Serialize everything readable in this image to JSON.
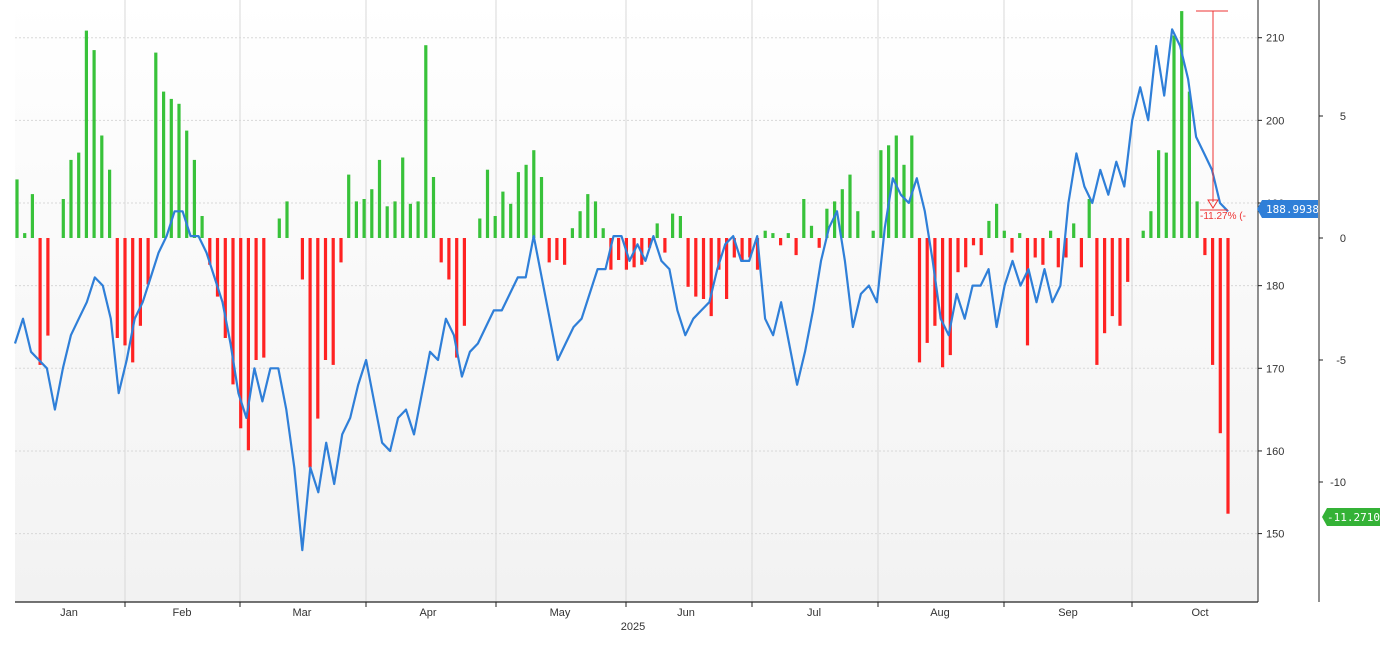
{
  "colors": {
    "price_line": "#2f7fd8",
    "bar_up": "#38c23a",
    "bar_down": "#ff2222",
    "grid": "#d8d8d8",
    "price_badge": "#2f7fd8",
    "pct_badge": "#34b236",
    "drawdown": "#ee3333"
  },
  "chart_data": {
    "type": "bar+line",
    "x_year_label": "2025",
    "month_labels": [
      "Jan",
      "Feb",
      "Mar",
      "Apr",
      "May",
      "Jun",
      "Jul",
      "Aug",
      "Sep",
      "Oct"
    ],
    "y_left": {
      "ticks": [
        "150",
        "160",
        "170",
        "180",
        "190",
        "200",
        "210"
      ],
      "range": [
        143,
        213
      ]
    },
    "y_right": {
      "ticks": [
        "5",
        "0",
        "-5",
        "-10"
      ],
      "range": [
        -15,
        9.6
      ]
    },
    "price_label": "188.9938",
    "pct_label": "-11.2710",
    "drawdown_label": "-11.27% (-",
    "grid": true,
    "series": [
      {
        "kind": "line",
        "axis": "left",
        "points": [
          [
            0,
            173
          ],
          [
            1,
            176
          ],
          [
            2,
            172
          ],
          [
            3,
            171
          ],
          [
            4,
            170
          ],
          [
            5,
            165
          ],
          [
            6,
            170
          ],
          [
            7,
            174
          ],
          [
            8,
            176
          ],
          [
            9,
            178
          ],
          [
            10,
            181
          ],
          [
            11,
            180
          ],
          [
            12,
            176
          ],
          [
            13,
            167
          ],
          [
            14,
            171
          ],
          [
            15,
            176
          ],
          [
            16,
            178
          ],
          [
            17,
            181
          ],
          [
            18,
            184
          ],
          [
            19,
            186
          ],
          [
            20,
            189
          ],
          [
            21,
            189
          ],
          [
            22,
            186
          ],
          [
            23,
            186
          ],
          [
            24,
            184
          ],
          [
            25,
            181
          ],
          [
            26,
            178
          ],
          [
            27,
            173
          ],
          [
            28,
            167
          ],
          [
            29,
            164
          ],
          [
            30,
            170
          ],
          [
            31,
            166
          ],
          [
            32,
            170
          ],
          [
            33,
            170
          ],
          [
            34,
            165
          ],
          [
            35,
            158
          ],
          [
            36,
            148
          ],
          [
            37,
            158
          ],
          [
            38,
            155
          ],
          [
            39,
            161
          ],
          [
            40,
            156
          ],
          [
            41,
            162
          ],
          [
            42,
            164
          ],
          [
            43,
            168
          ],
          [
            44,
            171
          ],
          [
            45,
            166
          ],
          [
            46,
            161
          ],
          [
            47,
            160
          ],
          [
            48,
            164
          ],
          [
            49,
            165
          ],
          [
            50,
            162
          ],
          [
            51,
            167
          ],
          [
            52,
            172
          ],
          [
            53,
            171
          ],
          [
            54,
            176
          ],
          [
            55,
            174
          ],
          [
            56,
            169
          ],
          [
            57,
            172
          ],
          [
            58,
            173
          ],
          [
            59,
            175
          ],
          [
            60,
            177
          ],
          [
            61,
            177
          ],
          [
            62,
            179
          ],
          [
            63,
            181
          ],
          [
            64,
            181
          ],
          [
            65,
            186
          ],
          [
            66,
            181
          ],
          [
            67,
            176
          ],
          [
            68,
            171
          ],
          [
            69,
            173
          ],
          [
            70,
            175
          ],
          [
            71,
            176
          ],
          [
            72,
            179
          ],
          [
            73,
            182
          ],
          [
            74,
            182
          ],
          [
            75,
            186
          ],
          [
            76,
            186
          ],
          [
            77,
            183
          ],
          [
            78,
            185
          ],
          [
            79,
            183
          ],
          [
            80,
            186
          ],
          [
            81,
            183
          ],
          [
            82,
            182
          ],
          [
            83,
            177
          ],
          [
            84,
            174
          ],
          [
            85,
            176
          ],
          [
            86,
            177
          ],
          [
            87,
            178
          ],
          [
            88,
            182
          ],
          [
            89,
            185
          ],
          [
            90,
            186
          ],
          [
            91,
            183
          ],
          [
            92,
            183
          ],
          [
            93,
            186
          ],
          [
            94,
            176
          ],
          [
            95,
            174
          ],
          [
            96,
            178
          ],
          [
            97,
            173
          ],
          [
            98,
            168
          ],
          [
            99,
            172
          ],
          [
            100,
            177
          ],
          [
            101,
            183
          ],
          [
            102,
            187
          ],
          [
            103,
            189
          ],
          [
            104,
            183
          ],
          [
            105,
            175
          ],
          [
            106,
            179
          ],
          [
            107,
            180
          ],
          [
            108,
            178
          ],
          [
            109,
            187
          ],
          [
            110,
            193
          ],
          [
            111,
            191
          ],
          [
            112,
            190
          ],
          [
            113,
            193
          ],
          [
            114,
            189
          ],
          [
            115,
            183
          ],
          [
            116,
            176
          ],
          [
            117,
            174
          ],
          [
            118,
            179
          ],
          [
            119,
            176
          ],
          [
            120,
            180
          ],
          [
            121,
            180
          ],
          [
            122,
            182
          ],
          [
            123,
            175
          ],
          [
            124,
            180
          ],
          [
            125,
            183
          ],
          [
            126,
            180
          ],
          [
            127,
            182
          ],
          [
            128,
            178
          ],
          [
            129,
            182
          ],
          [
            130,
            178
          ],
          [
            131,
            180
          ],
          [
            132,
            190
          ],
          [
            133,
            196
          ],
          [
            134,
            192
          ],
          [
            135,
            190
          ],
          [
            136,
            194
          ],
          [
            137,
            191
          ],
          [
            138,
            195
          ],
          [
            139,
            192
          ],
          [
            140,
            200
          ],
          [
            141,
            204
          ],
          [
            142,
            200
          ],
          [
            143,
            209
          ],
          [
            144,
            203
          ],
          [
            145,
            211
          ],
          [
            146,
            209
          ],
          [
            147,
            205
          ],
          [
            148,
            198
          ],
          [
            149,
            196
          ],
          [
            150,
            194
          ],
          [
            151,
            190
          ],
          [
            152,
            189
          ]
        ]
      },
      {
        "kind": "bars",
        "axis": "right",
        "values": [
          2.4,
          0.2,
          1.8,
          -5.2,
          -4.0,
          0,
          1.6,
          3.2,
          3.5,
          8.5,
          7.7,
          4.2,
          2.8,
          -4.1,
          -4.4,
          -5.1,
          -3.6,
          -1.9,
          7.6,
          6.0,
          5.7,
          5.5,
          4.4,
          3.2,
          0.9,
          -1.1,
          -2.4,
          -4.1,
          -6.0,
          -7.8,
          -8.7,
          -5.0,
          -4.9,
          0,
          0.8,
          1.5,
          0,
          -1.7,
          -9.4,
          -7.4,
          -5.0,
          -5.2,
          -1.0,
          2.6,
          1.5,
          1.6,
          2.0,
          3.2,
          1.3,
          1.5,
          3.3,
          1.4,
          1.5,
          7.9,
          2.5,
          -1.0,
          -1.7,
          -4.9,
          -3.6,
          0,
          0.8,
          2.8,
          0.9,
          1.9,
          1.4,
          2.7,
          3.0,
          3.6,
          2.5,
          -1.0,
          -0.9,
          -1.1,
          0.4,
          1.1,
          1.8,
          1.5,
          0.4,
          -1.3,
          -0.9,
          -1.3,
          -1.2,
          -1.1,
          -0.4,
          0.6,
          -0.6,
          1.0,
          0.9,
          -2.0,
          -2.4,
          -2.5,
          -3.2,
          -1.3,
          -2.5,
          -0.8,
          -0.9,
          -0.8,
          -1.3,
          0.3,
          0.2,
          -0.3,
          0.2,
          -0.7,
          1.6,
          0.5,
          -0.4,
          1.2,
          1.5,
          2.0,
          2.6,
          1.1,
          0,
          0.3,
          3.6,
          3.8,
          4.2,
          3.0,
          4.2,
          -5.1,
          -4.3,
          -3.6,
          -5.3,
          -4.8,
          -1.4,
          -1.2,
          -0.3,
          -0.7,
          0.7,
          1.4,
          0.3,
          -0.6,
          0.2,
          -4.4,
          -0.8,
          -1.1,
          0.3,
          -1.2,
          -0.8,
          0.6,
          -1.2,
          1.6,
          -5.2,
          -3.9,
          -3.2,
          -3.6,
          -1.8,
          0,
          0.3,
          1.1,
          3.6,
          3.5,
          8.3,
          9.3,
          6.0,
          1.5,
          -0.7,
          -5.2,
          -8.0,
          -11.3
        ]
      }
    ]
  }
}
